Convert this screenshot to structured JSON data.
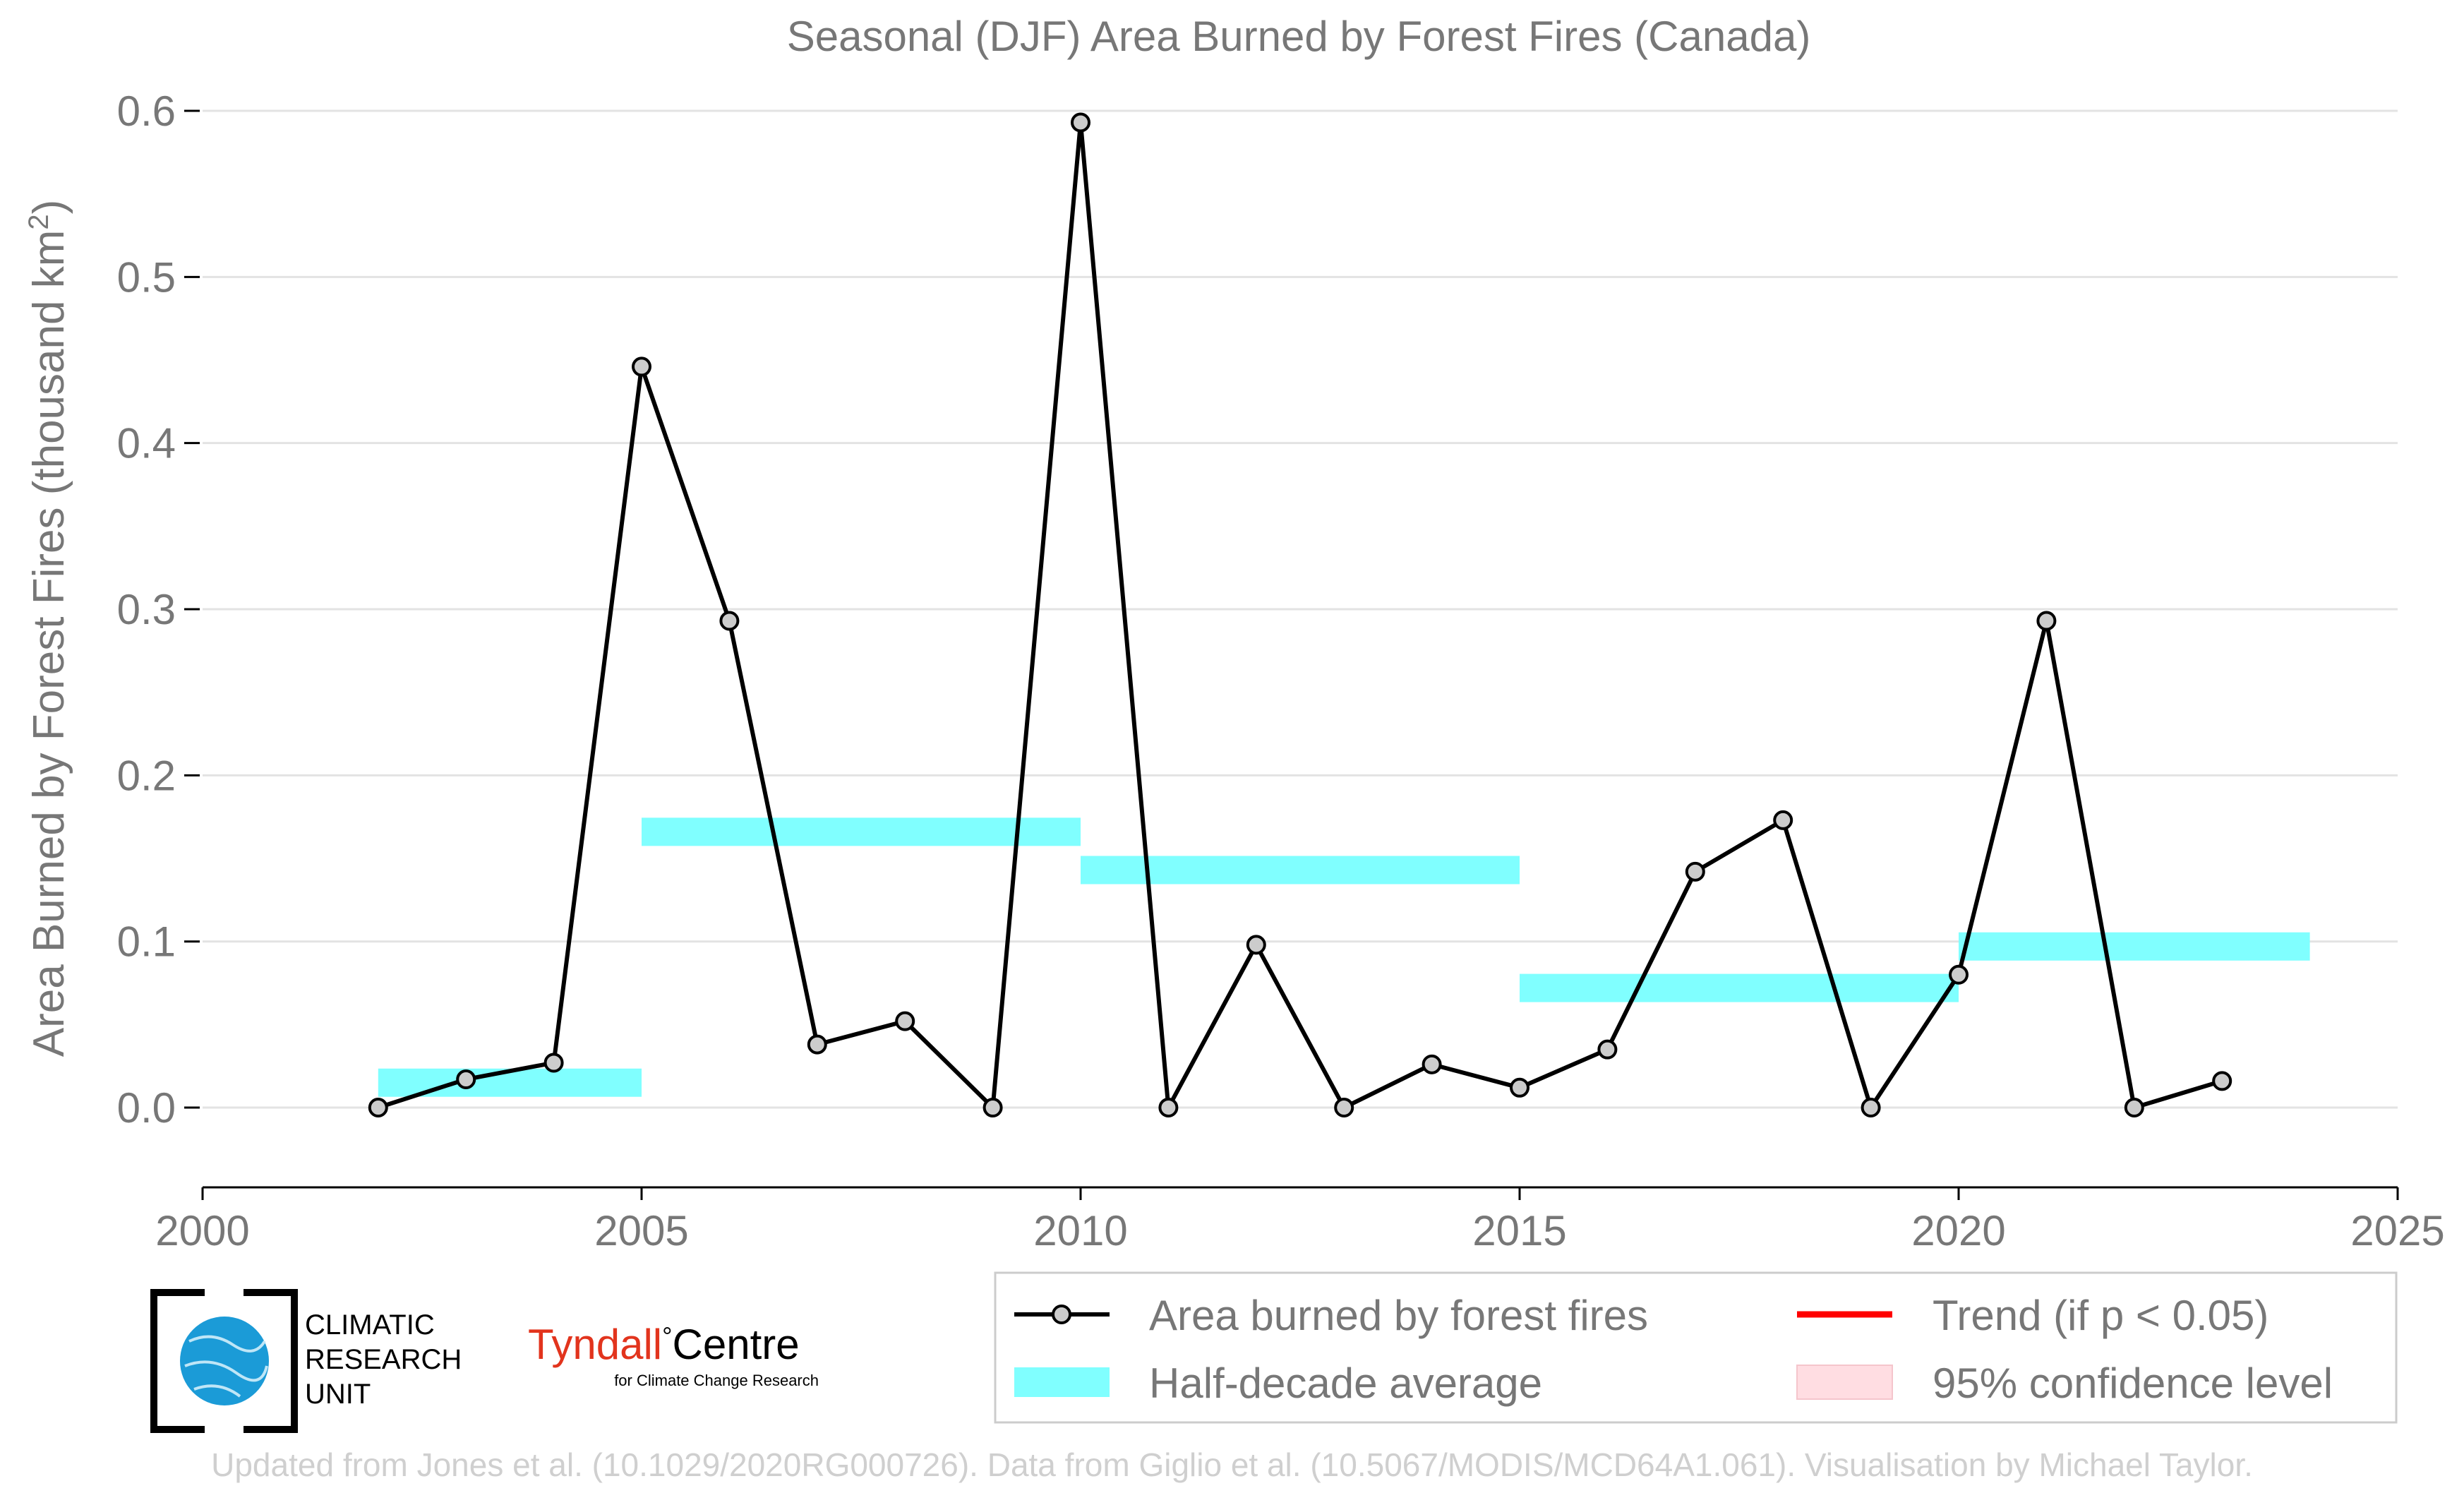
{
  "chart_data": {
    "type": "line",
    "title": "Seasonal (DJF) Area Burned by Forest Fires (Canada)",
    "ylabel": "Area Burned by Forest Fires (thousand km",
    "ylabel_sup": "2",
    "ylabel_close": ")",
    "xlabel": "",
    "xlim": [
      2000,
      2025
    ],
    "ylim": [
      -0.048,
      0.6
    ],
    "xticks": [
      "2000",
      "2005",
      "2010",
      "2015",
      "2020",
      "2025"
    ],
    "yticks": [
      "0.0",
      "0.1",
      "0.2",
      "0.3",
      "0.4",
      "0.5",
      "0.6"
    ],
    "grid": true,
    "series": [
      {
        "name": "Area burned by forest fires",
        "color": "#000000",
        "x": [
          2002,
          2003,
          2004,
          2005,
          2006,
          2007,
          2008,
          2009,
          2010,
          2011,
          2012,
          2013,
          2014,
          2015,
          2016,
          2017,
          2018,
          2019,
          2020,
          2021,
          2022,
          2023
        ],
        "y": [
          0.0,
          0.017,
          0.027,
          0.446,
          0.293,
          0.038,
          0.052,
          0.0,
          0.593,
          0.0,
          0.098,
          0.0,
          0.026,
          0.012,
          0.035,
          0.142,
          0.173,
          0.0,
          0.08,
          0.293,
          0.0,
          0.016
        ]
      }
    ],
    "half_decade_average": {
      "name": "Half-decade average",
      "color": "#80ffff",
      "segments": [
        {
          "x0": 2002,
          "x1": 2005,
          "y": 0.015
        },
        {
          "x0": 2005,
          "x1": 2010,
          "y": 0.166
        },
        {
          "x0": 2010,
          "x1": 2015,
          "y": 0.143
        },
        {
          "x0": 2015,
          "x1": 2020,
          "y": 0.072
        },
        {
          "x0": 2020,
          "x1": 2024,
          "y": 0.097
        }
      ]
    },
    "legend": {
      "position": "bottom-right",
      "entries": [
        {
          "label": "Area burned by forest fires",
          "kind": "line-marker",
          "color": "#000000"
        },
        {
          "label": "Trend (if p < 0.05)",
          "kind": "line",
          "color": "#ff0000"
        },
        {
          "label": "Half-decade average",
          "kind": "box",
          "color": "#80ffff"
        },
        {
          "label": "95% confidence level",
          "kind": "box",
          "color": "#ffdde2"
        }
      ]
    }
  },
  "logos": {
    "cru_line1": "CLIMATIC",
    "cru_line2": "RESEARCH",
    "cru_line3": "UNIT",
    "tyndall_name": "Tyndall",
    "tyndall_degree": "°",
    "tyndall_centre": "Centre",
    "tyndall_sub": "for Climate Change Research"
  },
  "footer": "Updated from Jones et al. (10.1029/2020RG000726). Data from Giglio et al. (10.5067/MODIS/MCD64A1.061). Visualisation by Michael Taylor."
}
